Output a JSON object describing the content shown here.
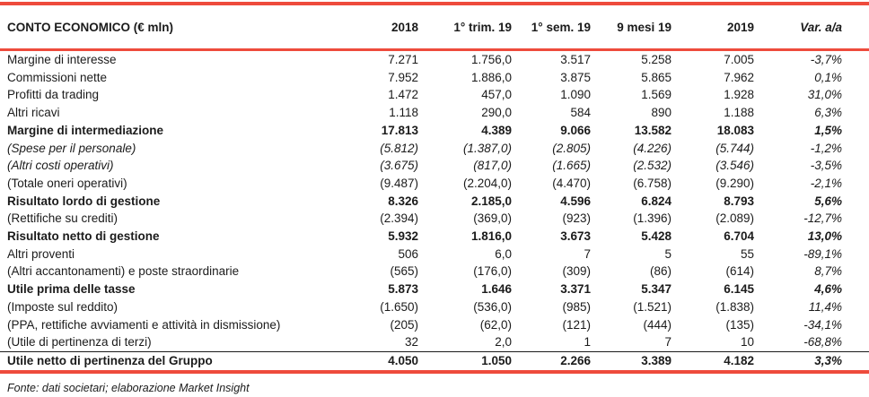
{
  "colors": {
    "accent_red": "#ee4b3c",
    "text": "#1b1b1b",
    "background": "#ffffff"
  },
  "table": {
    "header": {
      "label": "CONTO ECONOMICO (€ mln)",
      "columns": [
        "2018",
        "1° trim. 19",
        "1° sem. 19",
        "9 mesi 19",
        "2019",
        "Var. a/a"
      ]
    },
    "rows": [
      {
        "label": "Margine di interesse",
        "emphasis": "normal",
        "values": [
          "7.271",
          "1.756,0",
          "3.517",
          "5.258",
          "7.005",
          "-3,7%"
        ]
      },
      {
        "label": "Commissioni nette",
        "emphasis": "normal",
        "values": [
          "7.952",
          "1.886,0",
          "3.875",
          "5.865",
          "7.962",
          "0,1%"
        ]
      },
      {
        "label": "Profitti da trading",
        "emphasis": "normal",
        "values": [
          "1.472",
          "457,0",
          "1.090",
          "1.569",
          "1.928",
          "31,0%"
        ]
      },
      {
        "label": "Altri ricavi",
        "emphasis": "normal",
        "values": [
          "1.118",
          "290,0",
          "584",
          "890",
          "1.188",
          "6,3%"
        ]
      },
      {
        "label": "Margine di intermediazione",
        "emphasis": "bold",
        "values": [
          "17.813",
          "4.389",
          "9.066",
          "13.582",
          "18.083",
          "1,5%"
        ]
      },
      {
        "label": "(Spese per il personale)",
        "emphasis": "italic",
        "values": [
          "(5.812)",
          "(1.387,0)",
          "(2.805)",
          "(4.226)",
          "(5.744)",
          "-1,2%"
        ]
      },
      {
        "label": "(Altri costi operativi)",
        "emphasis": "italic",
        "values": [
          "(3.675)",
          "(817,0)",
          "(1.665)",
          "(2.532)",
          "(3.546)",
          "-3,5%"
        ]
      },
      {
        "label": "(Totale oneri operativi)",
        "emphasis": "normal",
        "values": [
          "(9.487)",
          "(2.204,0)",
          "(4.470)",
          "(6.758)",
          "(9.290)",
          "-2,1%"
        ]
      },
      {
        "label": "Risultato lordo di gestione",
        "emphasis": "bold",
        "values": [
          "8.326",
          "2.185,0",
          "4.596",
          "6.824",
          "8.793",
          "5,6%"
        ]
      },
      {
        "label": "(Rettifiche su crediti)",
        "emphasis": "normal",
        "values": [
          "(2.394)",
          "(369,0)",
          "(923)",
          "(1.396)",
          "(2.089)",
          "-12,7%"
        ]
      },
      {
        "label": "Risultato netto di gestione",
        "emphasis": "bold",
        "values": [
          "5.932",
          "1.816,0",
          "3.673",
          "5.428",
          "6.704",
          "13,0%"
        ]
      },
      {
        "label": "Altri proventi",
        "emphasis": "normal",
        "values": [
          "506",
          "6,0",
          "7",
          "5",
          "55",
          "-89,1%"
        ]
      },
      {
        "label": "(Altri accantonamenti) e poste straordinarie",
        "emphasis": "normal",
        "values": [
          "(565)",
          "(176,0)",
          "(309)",
          "(86)",
          "(614)",
          "8,7%"
        ]
      },
      {
        "label": "Utile prima delle tasse",
        "emphasis": "bold",
        "values": [
          "5.873",
          "1.646",
          "3.371",
          "5.347",
          "6.145",
          "4,6%"
        ]
      },
      {
        "label": "(Imposte sul reddito)",
        "emphasis": "normal",
        "values": [
          "(1.650)",
          "(536,0)",
          "(985)",
          "(1.521)",
          "(1.838)",
          "11,4%"
        ]
      },
      {
        "label": "(PPA, rettifiche avviamenti e attività in dismissione)",
        "emphasis": "normal",
        "values": [
          "(205)",
          "(62,0)",
          "(121)",
          "(444)",
          "(135)",
          "-34,1%"
        ]
      },
      {
        "label": "(Utile di pertinenza di terzi)",
        "emphasis": "normal",
        "values": [
          "32",
          "2,0",
          "1",
          "7",
          "10",
          "-68,8%"
        ]
      },
      {
        "label": "Utile netto di pertinenza del Gruppo",
        "emphasis": "bold",
        "top_border": true,
        "values": [
          "4.050",
          "1.050",
          "2.266",
          "3.389",
          "4.182",
          "3,3%"
        ]
      }
    ]
  },
  "footer": {
    "source": "Fonte: dati societari; elaborazione Market Insight"
  }
}
